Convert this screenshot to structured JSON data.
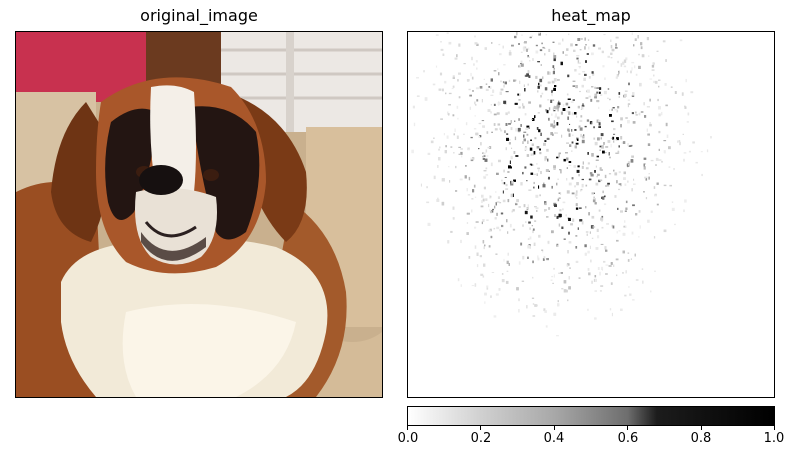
{
  "panels": {
    "left_title": "original_image",
    "right_title": "heat_map"
  },
  "colorbar": {
    "min": 0.0,
    "max": 1.0,
    "ticks": [
      "0.0",
      "0.2",
      "0.4",
      "0.6",
      "0.8",
      "1.0"
    ],
    "colormap": "gray_r"
  },
  "chart_data": [
    {
      "type": "image",
      "title": "original_image",
      "content": "photo of a St. Bernard dog"
    },
    {
      "type": "heatmap",
      "title": "heat_map",
      "colorbar_range": [
        0,
        1
      ],
      "colorbar_ticks": [
        0.0,
        0.2,
        0.4,
        0.6,
        0.8,
        1.0
      ],
      "grid": false
    }
  ]
}
